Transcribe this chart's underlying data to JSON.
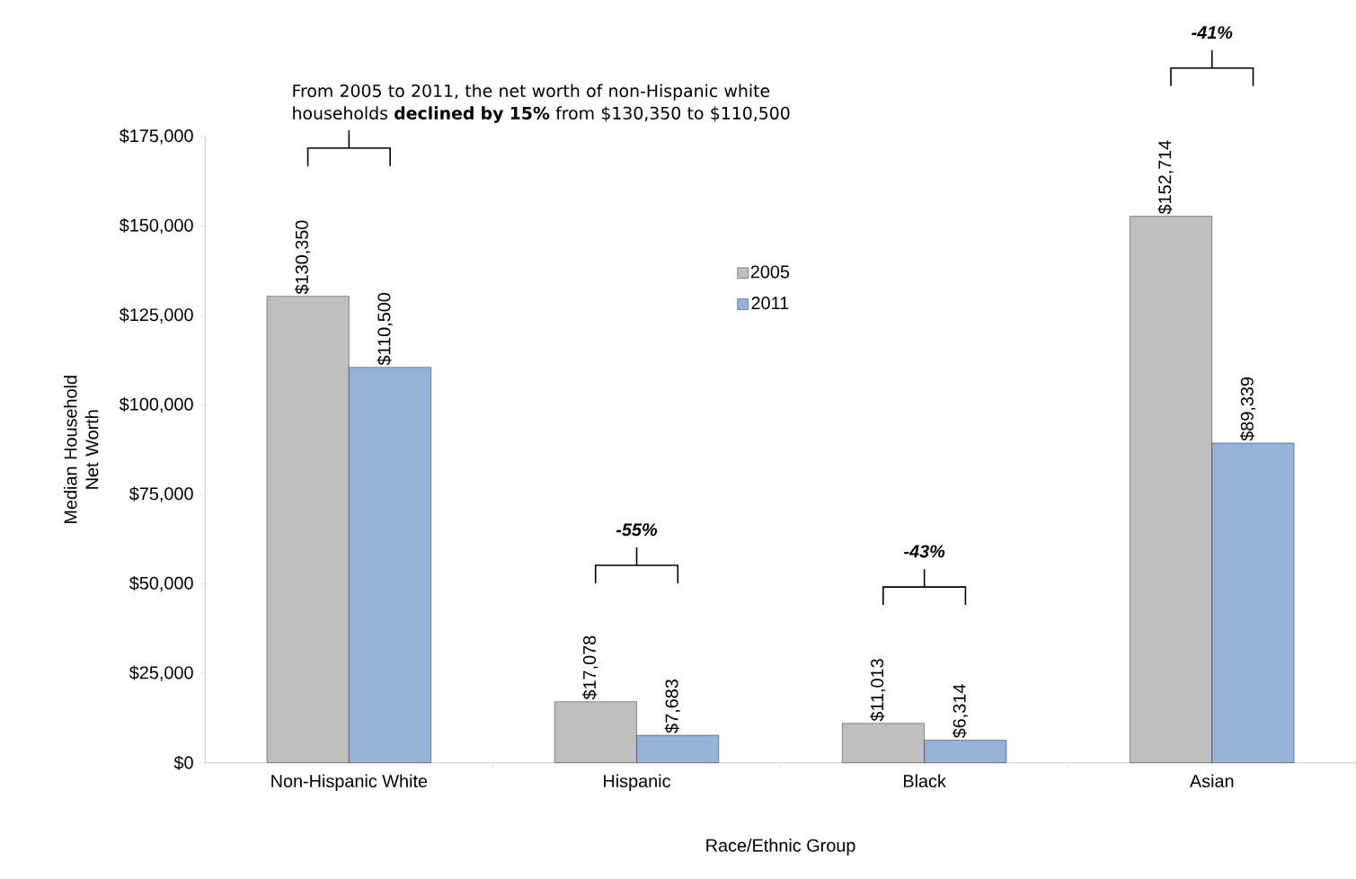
{
  "chart_data": {
    "type": "bar",
    "xlabel": "Race/Ethnic Group",
    "ylabel": "Median Household Net Worth",
    "categories": [
      "Non-Hispanic White",
      "Hispanic",
      "Black",
      "Asian"
    ],
    "series": [
      {
        "name": "2005",
        "color": "#bfbfbf",
        "values": [
          130350,
          17078,
          11013,
          152714
        ],
        "value_labels": [
          "$130,350",
          "$17,078",
          "$11,013",
          "$152,714"
        ]
      },
      {
        "name": "2011",
        "color": "#95b3d7",
        "values": [
          110500,
          7683,
          6314,
          89339
        ],
        "value_labels": [
          "$110,500",
          "$7,683",
          "$6,314",
          "$89,339"
        ]
      }
    ],
    "ylim": [
      0,
      175000
    ],
    "yticks": [
      {
        "value": 0,
        "label": "$0"
      },
      {
        "value": 25000,
        "label": "$25,000"
      },
      {
        "value": 50000,
        "label": "$50,000"
      },
      {
        "value": 75000,
        "label": "$75,000"
      },
      {
        "value": 100000,
        "label": "$100,000"
      },
      {
        "value": 125000,
        "label": "$125,000"
      },
      {
        "value": 150000,
        "label": "$150,000"
      },
      {
        "value": 175000,
        "label": "$175,000"
      }
    ],
    "grid": false,
    "legend": "top",
    "annotations": [
      "From 2005 to 2011, the net worth of non-Hispanic white households **declined by 15%** from $130,350 to $110,500",
      "-55%",
      "-43%",
      "-41%"
    ]
  }
}
